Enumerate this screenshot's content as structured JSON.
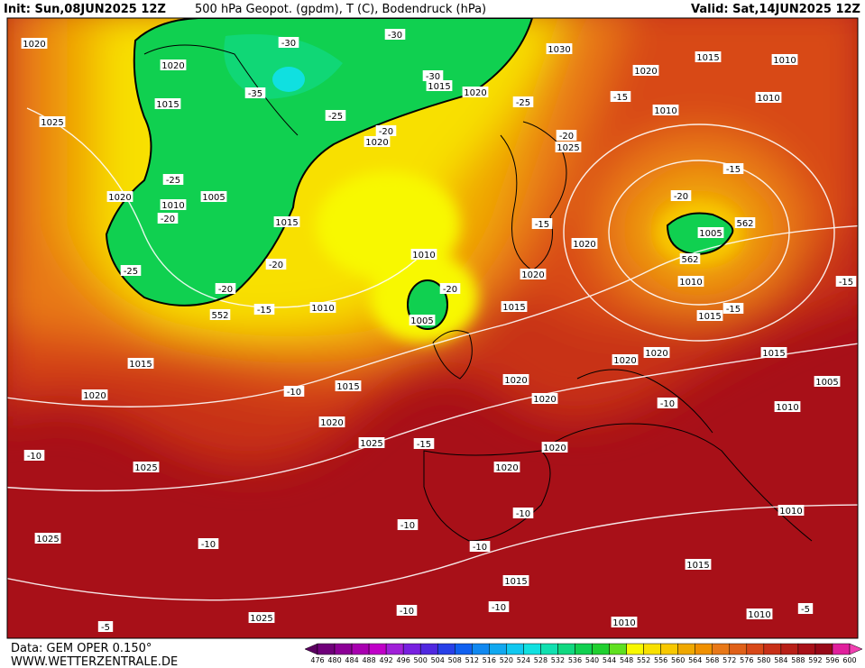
{
  "header": {
    "init": "Init: Sun,08JUN2025 12Z",
    "title": "500 hPa Geopot. (gpdm), T (C), Bodendruck (hPa)",
    "valid": "Valid: Sat,14JUN2025 12Z"
  },
  "footer": {
    "data": "Data: GEM OPER 0.150°",
    "site": "WWW.WETTERZENTRALE.DE"
  },
  "colorbar": {
    "ticks": [
      476,
      480,
      484,
      488,
      492,
      496,
      500,
      504,
      508,
      512,
      516,
      520,
      524,
      528,
      532,
      536,
      540,
      544,
      548,
      552,
      556,
      560,
      564,
      568,
      572,
      576,
      580,
      584,
      588,
      592,
      596,
      600
    ],
    "colors": [
      "#5a0060",
      "#70007a",
      "#8c0096",
      "#a800b0",
      "#c000c8",
      "#a020d8",
      "#7820e0",
      "#5028e0",
      "#2840e8",
      "#1060f0",
      "#1088f0",
      "#10a8f0",
      "#10c8f0",
      "#10e0e0",
      "#10e0b0",
      "#10d880",
      "#10d050",
      "#20d030",
      "#60e020",
      "#f8f800",
      "#f8e000",
      "#f8c800",
      "#f0a800",
      "#f09000",
      "#e87818",
      "#e06018",
      "#d84818",
      "#c83018",
      "#b82018",
      "#a81018",
      "#980818",
      "#e0209c",
      "#f040b0"
    ]
  },
  "map": {
    "labels": [
      "1020",
      "1020",
      "1015",
      "1025",
      "1020",
      "1005",
      "1010",
      "1015",
      "-30",
      "-30",
      "-30",
      "1015",
      "1020",
      "-35",
      "-25",
      "-20",
      "1020",
      "-25",
      "1030",
      "1020",
      "1015",
      "1010",
      "1010",
      "1010",
      "-15",
      "-20",
      "1025",
      "-15",
      "-20",
      "1005",
      "562",
      "562",
      "-15",
      "1020",
      "1010",
      "1020",
      "1010",
      "-15",
      "1015",
      "1015",
      "-15",
      "-20",
      "1005",
      "1010",
      "-15",
      "552",
      "-20",
      "-25",
      "-20",
      "-25",
      "-20",
      "1015",
      "1020",
      "-10",
      "1015",
      "1020",
      "1020",
      "1020",
      "1020",
      "1020",
      "-10",
      "1010",
      "1005",
      "1015",
      "-10",
      "1025",
      "1025",
      "-15",
      "1020",
      "1020",
      "-10",
      "-10",
      "-10",
      "1025",
      "-10",
      "1010",
      "1015",
      "1015",
      "-10",
      "-10",
      "1025",
      "-5",
      "1010",
      "1010",
      "-5"
    ]
  }
}
